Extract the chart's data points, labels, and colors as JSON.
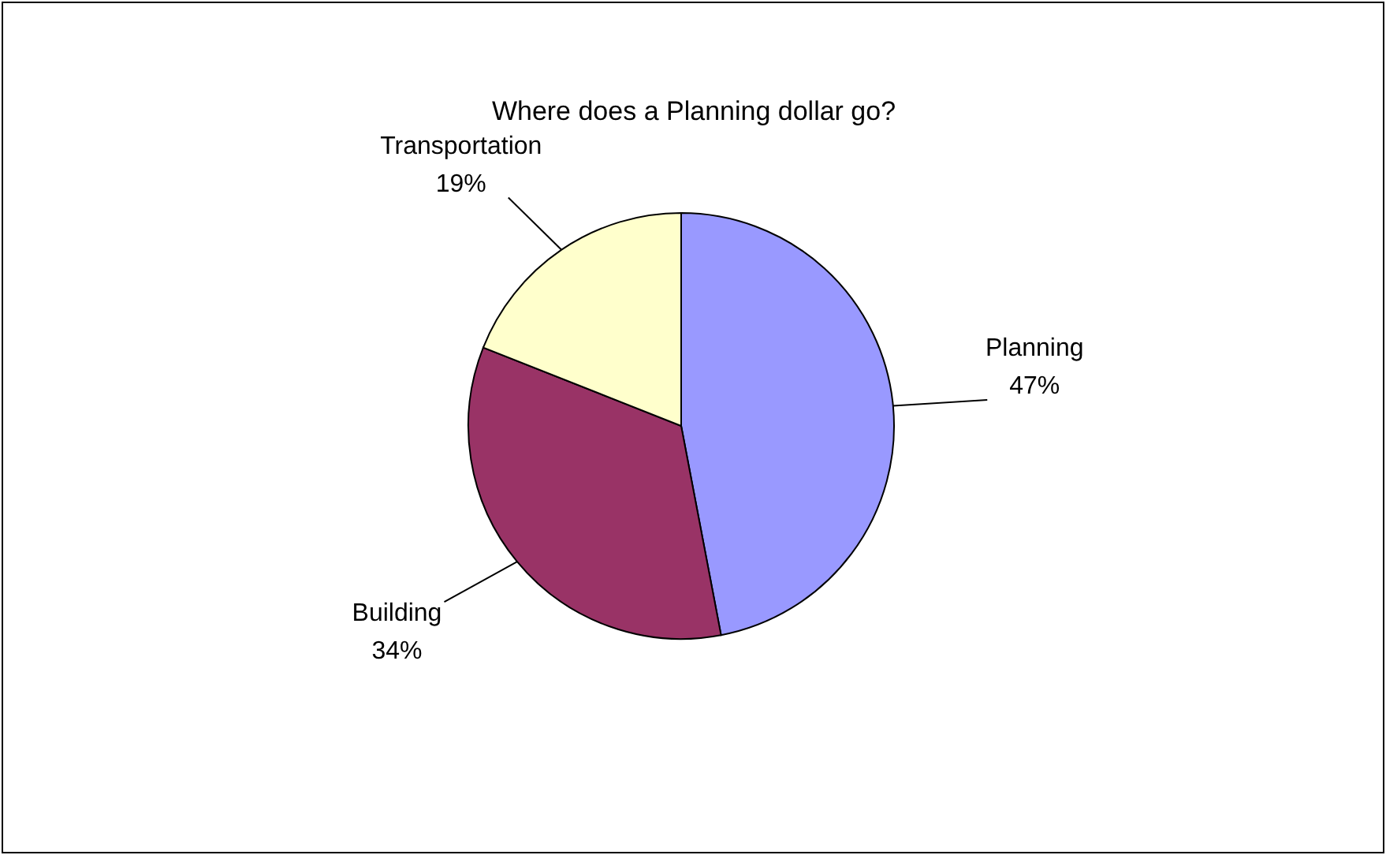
{
  "chart_data": {
    "type": "pie",
    "title": "Where does a Planning dollar go?",
    "categories": [
      "Planning",
      "Building",
      "Transportation"
    ],
    "values": [
      47,
      34,
      19
    ],
    "value_labels": [
      "47%",
      "34%",
      "19%"
    ],
    "colors": [
      "#9999ff",
      "#993366",
      "#ffffcc"
    ]
  }
}
